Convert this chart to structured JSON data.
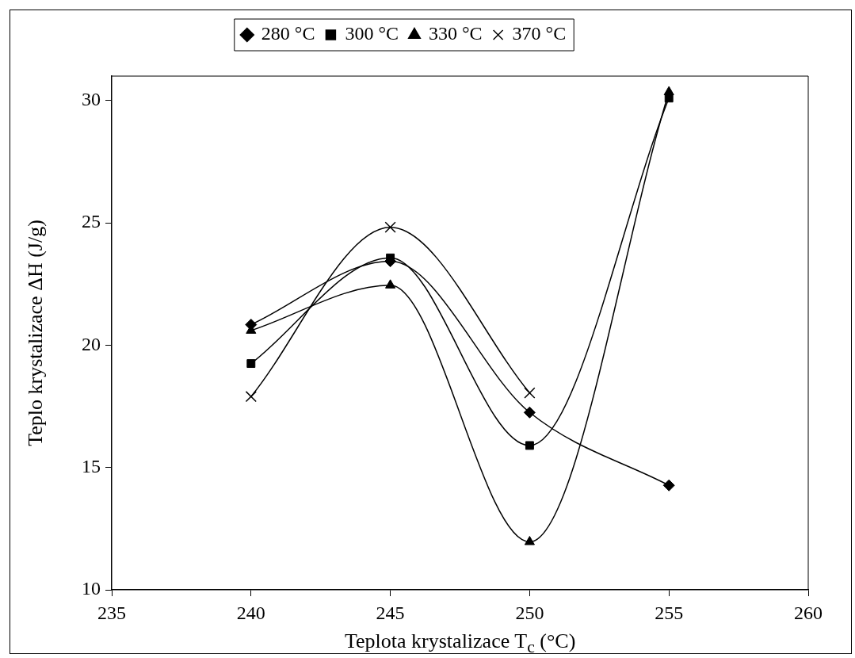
{
  "chart_data": {
    "type": "line",
    "xlabel": "Teplota krystalizace T$_{c}$ (°C)",
    "ylabel": "Teplo krystalizace ΔH (J/g)",
    "x": [
      240,
      245,
      250,
      255
    ],
    "series": [
      {
        "name": "280 °C",
        "color": "#000000",
        "marker": "diamond",
        "values": [
          20.84,
          23.43,
          17.25,
          14.27
        ]
      },
      {
        "name": "300 °C",
        "color": "#000000",
        "marker": "square",
        "values": [
          19.25,
          23.57,
          15.9,
          30.1
        ]
      },
      {
        "name": "330 °C",
        "color": "#000000",
        "marker": "triangle",
        "values": [
          20.6,
          22.45,
          11.96,
          30.35
        ]
      },
      {
        "name": "370 °C",
        "color": "#000000",
        "marker": "cross",
        "values": [
          17.9,
          24.82,
          18.05,
          null
        ]
      }
    ],
    "xlim": [
      235,
      260
    ],
    "xticks": [
      235,
      240,
      245,
      250,
      255,
      260
    ],
    "ylim": [
      10,
      31
    ],
    "yticks": [
      10,
      15,
      20,
      25,
      30
    ],
    "grid": false,
    "legend": "top",
    "line_style": "solid"
  }
}
